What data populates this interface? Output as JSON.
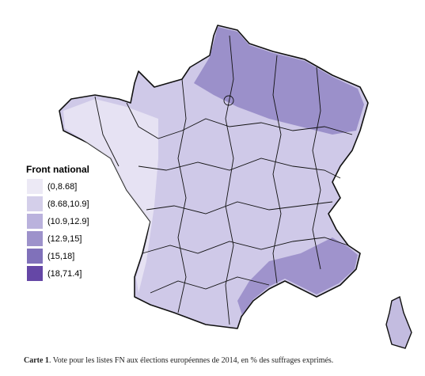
{
  "legend": {
    "title": "Front national",
    "items": [
      {
        "label": "(0,8.68]",
        "color": "#ece9f5"
      },
      {
        "label": "(8.68,10.9]",
        "color": "#d4cfea"
      },
      {
        "label": "(10.9,12.9]",
        "color": "#bab2dd"
      },
      {
        "label": "(12.9,15]",
        "color": "#9d92cb"
      },
      {
        "label": "(15,18]",
        "color": "#8071ba"
      },
      {
        "label": "(18,71.4]",
        "color": "#6547a6"
      }
    ]
  },
  "caption": {
    "label": "Carte 1",
    "text": ". Vote pour les listes FN aux élections européennes de 2014, en % des suffrages exprimés."
  }
}
